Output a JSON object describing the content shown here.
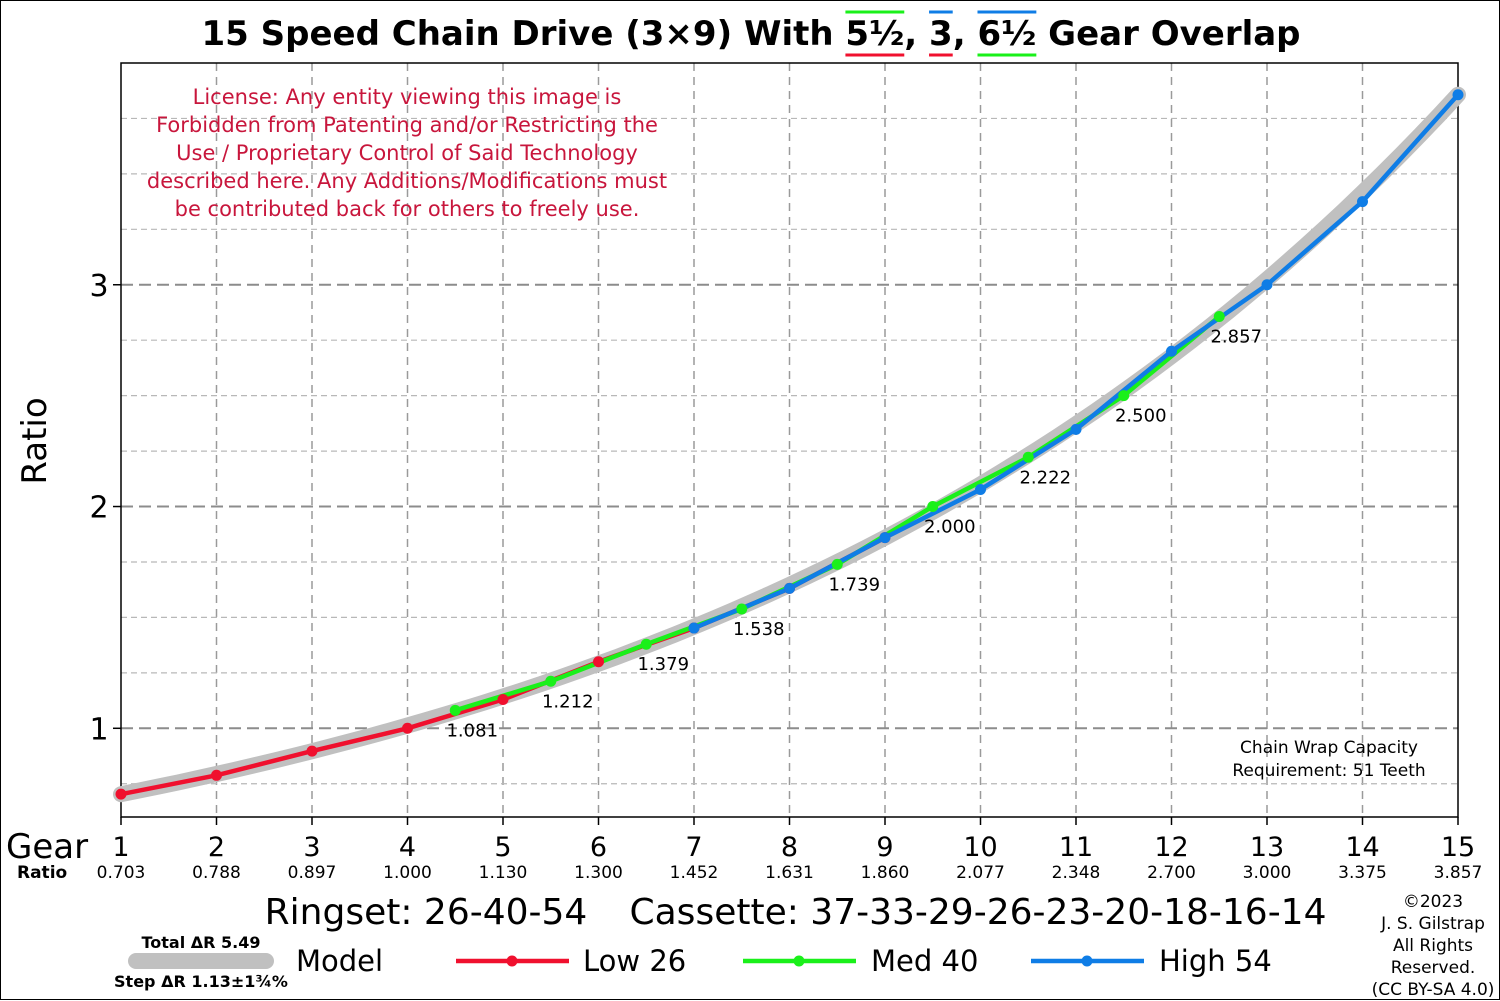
{
  "title_parts": {
    "prefix": "15 Speed Chain Drive (3×9) With ",
    "o1": "5½",
    "sep1": ", ",
    "o2": "3",
    "sep2": ", ",
    "o3": "6½",
    "suffix": " Gear Overlap"
  },
  "license_lines": [
    "License: Any entity viewing this image is",
    "Forbidden from Patenting and/or Restricting the",
    "Use / Proprietary Control of Said Technology",
    "described here. Any Additions/Modifications must",
    "be contributed back for others to freely use."
  ],
  "chain_wrap_lines": [
    "Chain Wrap Capacity",
    "Requirement: 51 Teeth"
  ],
  "ringset_text": "Ringset: 26-40-54",
  "cassette_text": "Cassette: 37-33-29-26-23-20-18-16-14",
  "copyright_lines": [
    "©2023",
    "J. S. Gilstrap",
    "All Rights",
    "Reserved.",
    "(CC BY-SA 4.0)"
  ],
  "model_stats": {
    "total": "Total ΔR 5.49",
    "step": "Step ΔR 1.13±1¾%"
  },
  "colors": {
    "low": "#f0102e",
    "med": "#1af01a",
    "high": "#0f7de6",
    "model": "#c0c0c0",
    "license": "#c8163c"
  },
  "chart_data": {
    "type": "line",
    "title": "15 Speed Chain Drive (3×9) With 5½, 3, 6½ Gear Overlap",
    "xlabel": "Gear",
    "xlabel2": "Ratio",
    "ylabel": "Ratio",
    "xlim": [
      1,
      15
    ],
    "ylim": [
      0.6,
      4.0
    ],
    "grid": true,
    "x_ticks": [
      "1",
      "2",
      "3",
      "4",
      "5",
      "6",
      "7",
      "8",
      "9",
      "10",
      "11",
      "12",
      "13",
      "14",
      "15"
    ],
    "ratio_ticks": [
      "0.703",
      "0.788",
      "0.897",
      "1.000",
      "1.130",
      "1.300",
      "1.452",
      "1.631",
      "1.860",
      "2.077",
      "2.348",
      "2.700",
      "3.000",
      "3.375",
      "3.857"
    ],
    "y_ticks": [
      {
        "value": 1,
        "label": "1"
      },
      {
        "value": 2,
        "label": "2"
      },
      {
        "value": 3,
        "label": "3"
      }
    ],
    "series": [
      {
        "name": "Model",
        "key": "model",
        "x": [
          1,
          15
        ],
        "y_model_from": 0.703,
        "y_model_to": 3.857
      },
      {
        "name": "Low 26",
        "key": "low",
        "x": [
          1,
          2,
          3,
          4,
          5,
          6,
          7,
          8,
          9
        ],
        "y": [
          0.703,
          0.788,
          0.897,
          1.0,
          1.13,
          1.3,
          1.452,
          1.631,
          1.86
        ]
      },
      {
        "name": "Med 40",
        "key": "med",
        "x": [
          4.5,
          5.5,
          6.5,
          7.5,
          8.5,
          9.5,
          10.5,
          11.5,
          12.5
        ],
        "y": [
          1.081,
          1.212,
          1.379,
          1.538,
          1.739,
          2.0,
          2.222,
          2.5,
          2.857
        ]
      },
      {
        "name": "High 54",
        "key": "high",
        "x": [
          7,
          8,
          9,
          10,
          11,
          12,
          13,
          14,
          15
        ],
        "y": [
          1.452,
          1.631,
          1.86,
          2.077,
          2.348,
          2.7,
          3.0,
          3.375,
          3.857
        ]
      }
    ],
    "annotations": [
      {
        "x": 4.5,
        "y": 1.081,
        "label": "1.081"
      },
      {
        "x": 5.5,
        "y": 1.212,
        "label": "1.212"
      },
      {
        "x": 6.5,
        "y": 1.379,
        "label": "1.379"
      },
      {
        "x": 7.5,
        "y": 1.538,
        "label": "1.538"
      },
      {
        "x": 8.5,
        "y": 1.739,
        "label": "1.739"
      },
      {
        "x": 9.5,
        "y": 2.0,
        "label": "2.000"
      },
      {
        "x": 10.5,
        "y": 2.222,
        "label": "2.222"
      },
      {
        "x": 11.5,
        "y": 2.5,
        "label": "2.500"
      },
      {
        "x": 12.5,
        "y": 2.857,
        "label": "2.857"
      }
    ],
    "legend": {
      "placement": "bottom",
      "entries": [
        {
          "key": "model",
          "label": "Model"
        },
        {
          "key": "low",
          "label": "Low 26"
        },
        {
          "key": "med",
          "label": "Med 40"
        },
        {
          "key": "high",
          "label": "High 54"
        }
      ]
    }
  }
}
